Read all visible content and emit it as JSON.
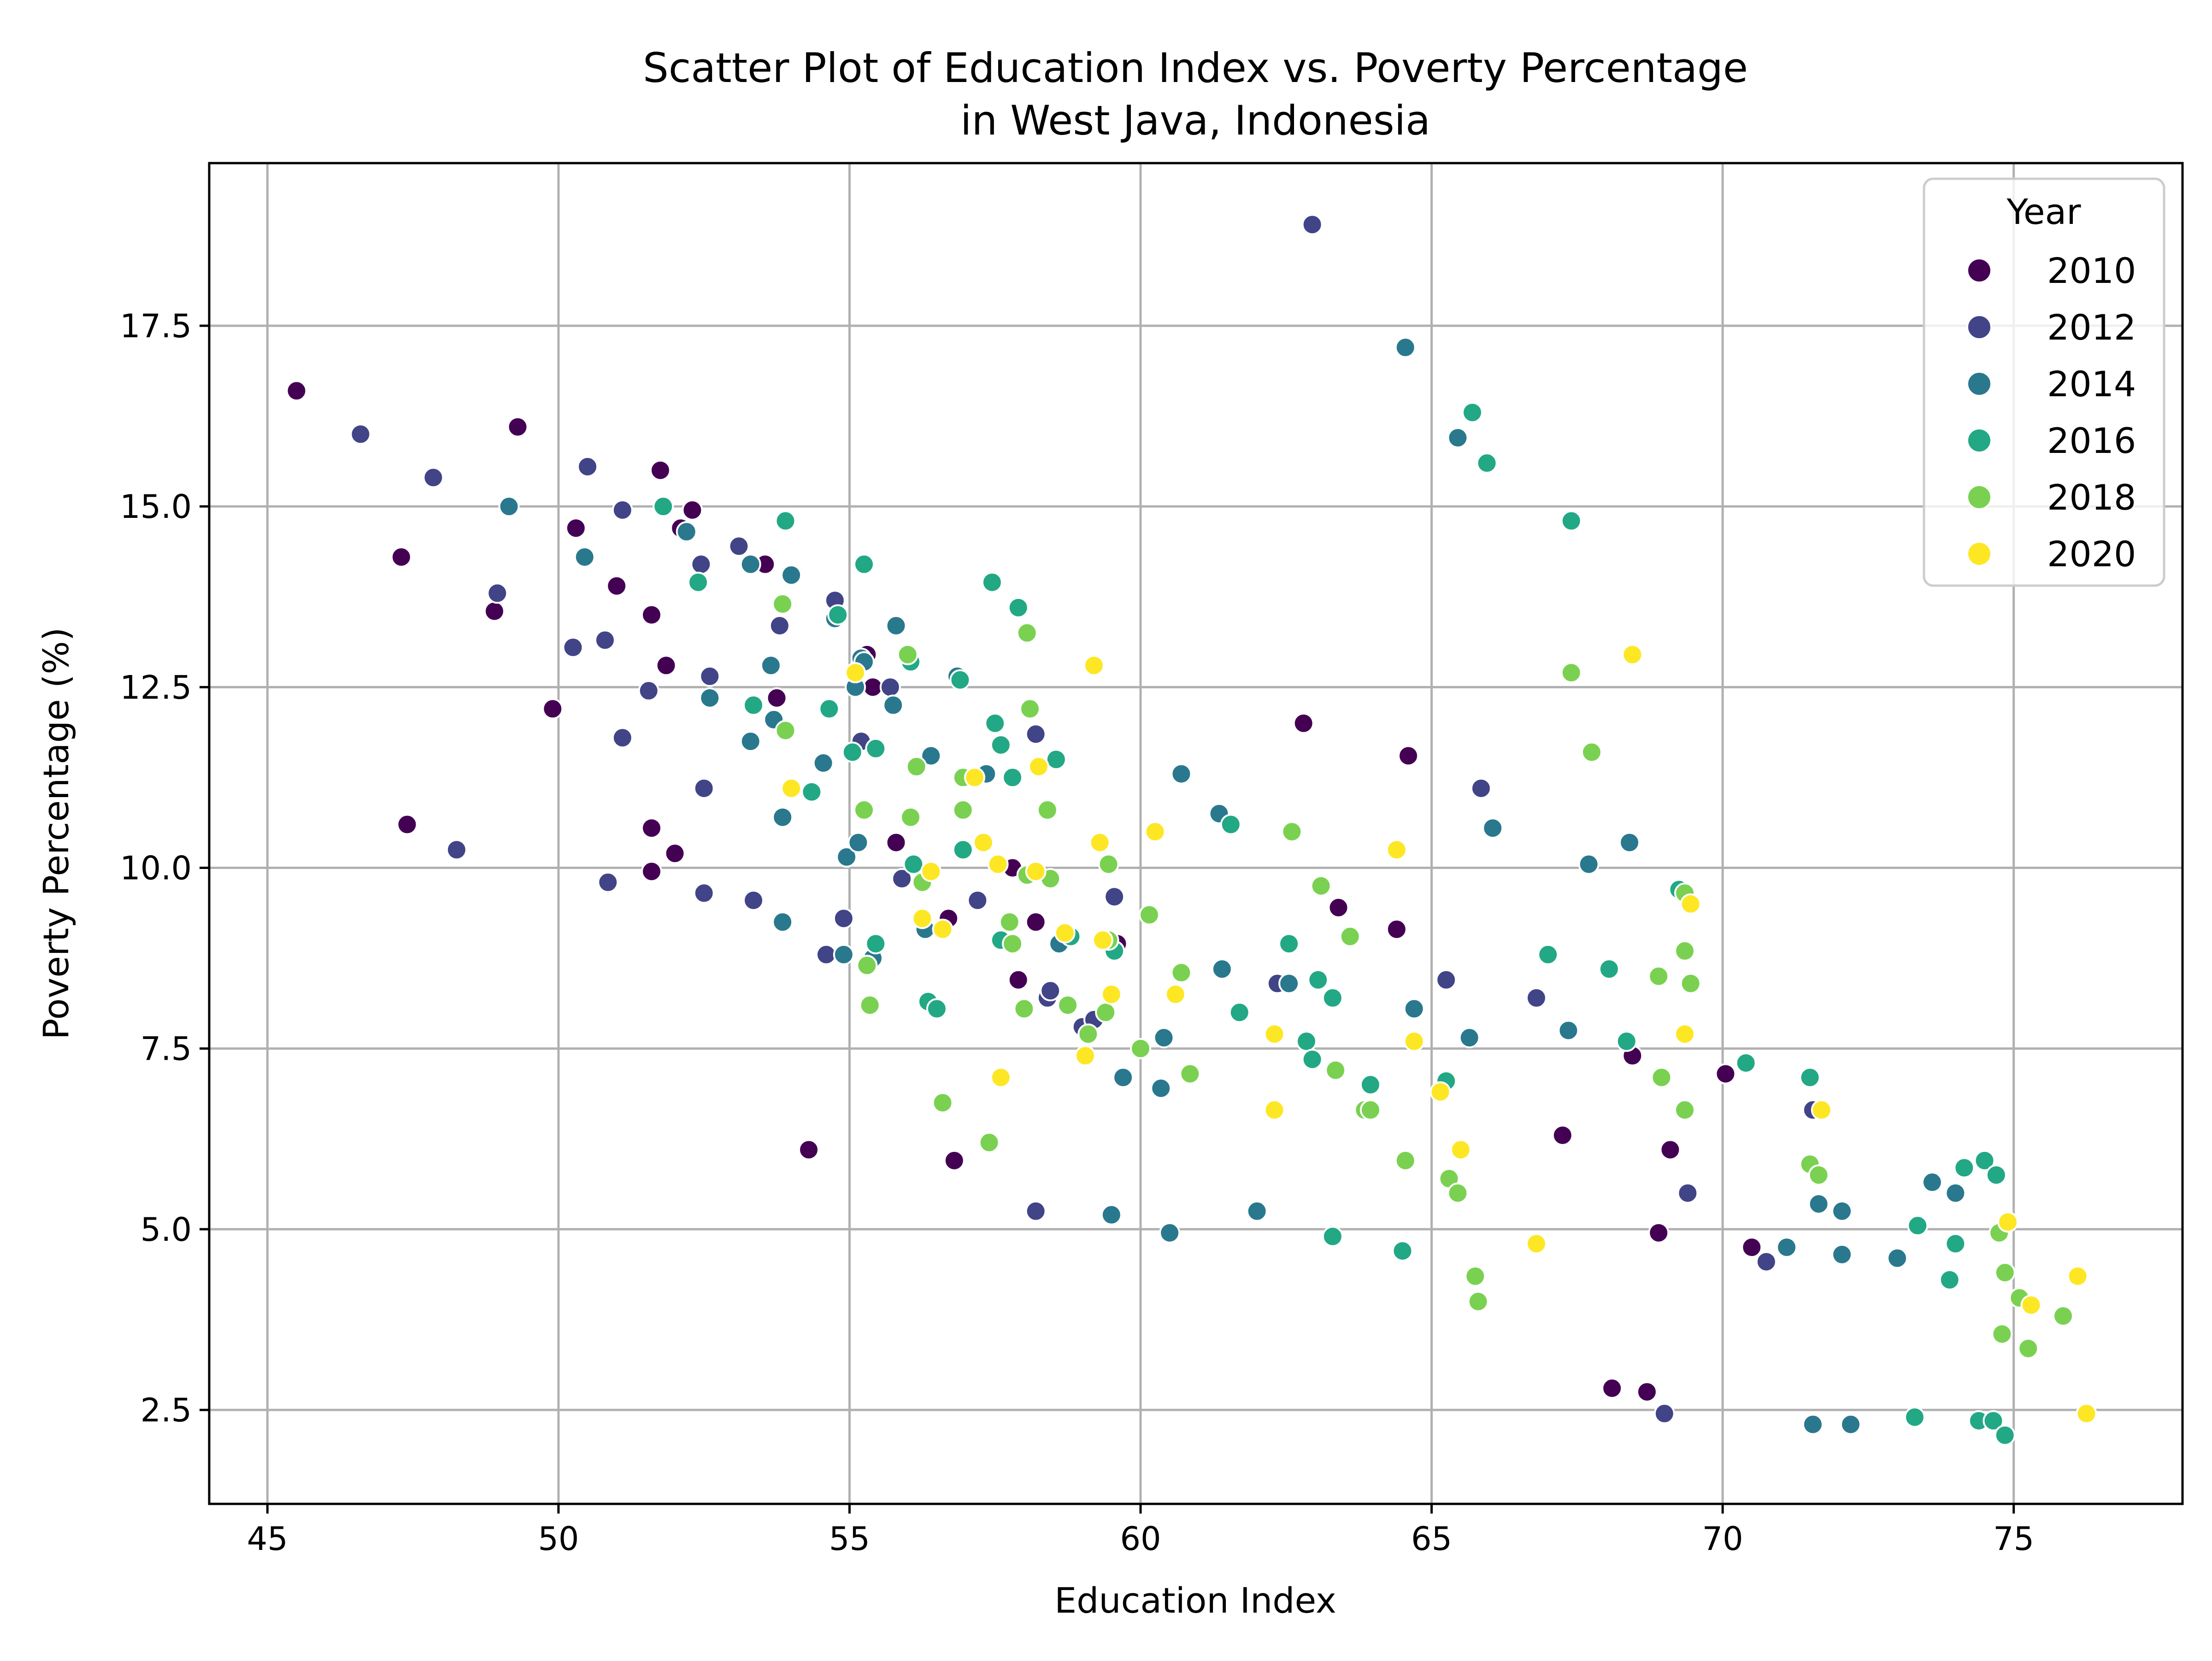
{
  "chart_data": {
    "type": "scatter",
    "title": "Scatter Plot of Education Index vs. Poverty Percentage\nin West Java, Indonesia",
    "title_lines": [
      "Scatter Plot of Education Index vs. Poverty Percentage",
      "in West Java, Indonesia"
    ],
    "xlabel": "Education Index",
    "ylabel": "Poverty Percentage (%)",
    "xlim": [
      44.0,
      77.9
    ],
    "ylim": [
      1.2,
      19.75
    ],
    "xticks": [
      45,
      50,
      55,
      60,
      65,
      70,
      75
    ],
    "yticks": [
      2.5,
      5.0,
      7.5,
      10.0,
      12.5,
      15.0,
      17.5
    ],
    "xtick_labels": [
      "45",
      "50",
      "55",
      "60",
      "65",
      "70",
      "75"
    ],
    "ytick_labels": [
      "2.5",
      "5.0",
      "7.5",
      "10.0",
      "12.5",
      "15.0",
      "17.5"
    ],
    "grid": true,
    "legend": {
      "title": "Year",
      "placement": "top-right"
    },
    "series": [
      {
        "name": "2010",
        "color": "#440154",
        "points": [
          [
            45.5,
            16.6
          ],
          [
            47.3,
            14.3
          ],
          [
            47.4,
            10.6
          ],
          [
            48.9,
            13.55
          ],
          [
            49.3,
            16.1
          ],
          [
            49.9,
            12.2
          ],
          [
            50.3,
            14.7
          ],
          [
            51.0,
            13.9
          ],
          [
            51.6,
            13.5
          ],
          [
            51.6,
            10.55
          ],
          [
            51.6,
            9.95
          ],
          [
            51.75,
            15.5
          ],
          [
            51.85,
            12.8
          ],
          [
            52.3,
            14.95
          ],
          [
            52.0,
            10.2
          ],
          [
            52.1,
            14.7
          ],
          [
            53.55,
            14.2
          ],
          [
            53.75,
            12.35
          ],
          [
            54.3,
            6.1
          ],
          [
            55.3,
            12.95
          ],
          [
            55.4,
            12.5
          ],
          [
            55.8,
            10.35
          ],
          [
            56.7,
            9.3
          ],
          [
            56.8,
            5.95
          ],
          [
            57.8,
            10.0
          ],
          [
            57.9,
            8.45
          ],
          [
            58.2,
            9.25
          ],
          [
            59.6,
            8.95
          ],
          [
            62.8,
            12.0
          ],
          [
            63.4,
            9.45
          ],
          [
            64.4,
            9.15
          ],
          [
            64.6,
            11.55
          ],
          [
            67.25,
            6.3
          ],
          [
            68.1,
            2.8
          ],
          [
            68.45,
            7.4
          ],
          [
            68.7,
            2.75
          ],
          [
            68.9,
            4.95
          ],
          [
            69.1,
            6.1
          ],
          [
            70.05,
            7.15
          ],
          [
            70.5,
            4.75
          ]
        ]
      },
      {
        "name": "2012",
        "color": "#414487",
        "points": [
          [
            46.6,
            16.0
          ],
          [
            47.85,
            15.4
          ],
          [
            48.25,
            10.25
          ],
          [
            48.95,
            13.8
          ],
          [
            50.25,
            13.05
          ],
          [
            50.5,
            15.55
          ],
          [
            50.8,
            13.15
          ],
          [
            50.85,
            9.8
          ],
          [
            51.1,
            11.8
          ],
          [
            51.1,
            14.95
          ],
          [
            51.55,
            12.45
          ],
          [
            52.45,
            14.2
          ],
          [
            52.5,
            11.1
          ],
          [
            52.5,
            9.65
          ],
          [
            52.6,
            12.65
          ],
          [
            53.1,
            14.45
          ],
          [
            53.35,
            9.55
          ],
          [
            53.8,
            13.35
          ],
          [
            54.6,
            8.8
          ],
          [
            54.75,
            13.7
          ],
          [
            54.9,
            9.3
          ],
          [
            55.2,
            11.75
          ],
          [
            55.7,
            12.5
          ],
          [
            55.9,
            9.85
          ],
          [
            57.2,
            9.55
          ],
          [
            58.2,
            11.85
          ],
          [
            58.2,
            5.25
          ],
          [
            58.4,
            8.2
          ],
          [
            58.45,
            8.3
          ],
          [
            59.0,
            7.8
          ],
          [
            59.2,
            7.9
          ],
          [
            59.55,
            9.6
          ],
          [
            62.35,
            8.4
          ],
          [
            62.95,
            18.9
          ],
          [
            65.25,
            8.45
          ],
          [
            65.85,
            11.1
          ],
          [
            66.8,
            8.2
          ],
          [
            69.0,
            2.45
          ],
          [
            69.4,
            5.5
          ],
          [
            70.75,
            4.55
          ],
          [
            71.55,
            6.65
          ]
        ]
      },
      {
        "name": "2014",
        "color": "#2a788e",
        "points": [
          [
            49.15,
            15.0
          ],
          [
            50.45,
            14.3
          ],
          [
            52.2,
            14.65
          ],
          [
            52.6,
            12.35
          ],
          [
            53.3,
            11.75
          ],
          [
            53.3,
            14.2
          ],
          [
            53.65,
            12.8
          ],
          [
            53.7,
            12.05
          ],
          [
            53.85,
            10.7
          ],
          [
            53.85,
            9.25
          ],
          [
            54.0,
            14.05
          ],
          [
            54.55,
            11.45
          ],
          [
            54.75,
            13.45
          ],
          [
            54.9,
            8.8
          ],
          [
            54.95,
            10.15
          ],
          [
            55.1,
            12.5
          ],
          [
            55.15,
            10.35
          ],
          [
            55.2,
            12.9
          ],
          [
            55.25,
            12.85
          ],
          [
            55.4,
            8.75
          ],
          [
            55.75,
            12.25
          ],
          [
            55.8,
            13.35
          ],
          [
            56.4,
            11.55
          ],
          [
            56.3,
            9.15
          ],
          [
            56.85,
            12.65
          ],
          [
            57.35,
            11.3
          ],
          [
            58.6,
            8.95
          ],
          [
            59.5,
            5.2
          ],
          [
            59.7,
            7.1
          ],
          [
            60.35,
            6.95
          ],
          [
            60.4,
            7.65
          ],
          [
            60.5,
            4.95
          ],
          [
            60.7,
            11.3
          ],
          [
            61.35,
            10.75
          ],
          [
            61.4,
            8.6
          ],
          [
            62.0,
            5.25
          ],
          [
            62.55,
            8.4
          ],
          [
            64.55,
            17.2
          ],
          [
            64.7,
            8.05
          ],
          [
            65.45,
            15.95
          ],
          [
            65.65,
            7.65
          ],
          [
            66.05,
            10.55
          ],
          [
            67.7,
            10.05
          ],
          [
            67.35,
            7.75
          ],
          [
            68.4,
            10.35
          ],
          [
            71.1,
            4.75
          ],
          [
            71.55,
            2.3
          ],
          [
            71.65,
            5.35
          ],
          [
            72.05,
            5.25
          ],
          [
            72.05,
            4.65
          ],
          [
            72.2,
            2.3
          ],
          [
            73.0,
            4.6
          ],
          [
            73.6,
            5.65
          ],
          [
            74.0,
            5.5
          ]
        ]
      },
      {
        "name": "2016",
        "color": "#22a884",
        "points": [
          [
            51.8,
            15.0
          ],
          [
            52.4,
            13.95
          ],
          [
            53.35,
            12.25
          ],
          [
            53.9,
            14.8
          ],
          [
            54.35,
            11.05
          ],
          [
            54.65,
            12.2
          ],
          [
            54.8,
            13.5
          ],
          [
            55.05,
            11.6
          ],
          [
            55.25,
            14.2
          ],
          [
            55.45,
            8.95
          ],
          [
            55.45,
            11.65
          ],
          [
            56.05,
            12.85
          ],
          [
            56.1,
            10.05
          ],
          [
            56.35,
            8.15
          ],
          [
            56.5,
            8.05
          ],
          [
            56.9,
            12.6
          ],
          [
            56.95,
            10.25
          ],
          [
            57.45,
            13.95
          ],
          [
            57.5,
            12.0
          ],
          [
            57.6,
            9.0
          ],
          [
            57.6,
            11.7
          ],
          [
            57.8,
            11.25
          ],
          [
            57.9,
            13.6
          ],
          [
            58.55,
            11.5
          ],
          [
            58.8,
            9.05
          ],
          [
            59.55,
            8.85
          ],
          [
            61.7,
            8.0
          ],
          [
            61.55,
            10.6
          ],
          [
            62.55,
            8.95
          ],
          [
            62.85,
            7.6
          ],
          [
            62.95,
            7.35
          ],
          [
            63.05,
            8.45
          ],
          [
            63.3,
            8.2
          ],
          [
            63.3,
            4.9
          ],
          [
            63.95,
            7.0
          ],
          [
            64.5,
            4.7
          ],
          [
            65.25,
            7.05
          ],
          [
            65.7,
            16.3
          ],
          [
            65.95,
            15.6
          ],
          [
            67.0,
            8.8
          ],
          [
            67.4,
            14.8
          ],
          [
            68.05,
            8.6
          ],
          [
            68.35,
            7.6
          ],
          [
            69.25,
            9.7
          ],
          [
            70.4,
            7.3
          ],
          [
            71.5,
            7.1
          ],
          [
            73.35,
            5.05
          ],
          [
            73.3,
            2.4
          ],
          [
            73.9,
            4.3
          ],
          [
            74.0,
            4.8
          ],
          [
            74.15,
            5.85
          ],
          [
            74.4,
            2.35
          ],
          [
            74.5,
            5.95
          ],
          [
            74.65,
            2.35
          ],
          [
            74.7,
            5.75
          ],
          [
            74.85,
            2.15
          ]
        ]
      },
      {
        "name": "2018",
        "color": "#7ad151",
        "points": [
          [
            53.85,
            13.65
          ],
          [
            53.9,
            11.9
          ],
          [
            55.25,
            10.8
          ],
          [
            55.3,
            8.65
          ],
          [
            55.35,
            8.1
          ],
          [
            56.05,
            10.7
          ],
          [
            56.0,
            12.95
          ],
          [
            56.15,
            11.4
          ],
          [
            56.25,
            9.8
          ],
          [
            56.6,
            6.75
          ],
          [
            56.95,
            10.8
          ],
          [
            56.95,
            11.25
          ],
          [
            57.4,
            6.2
          ],
          [
            57.75,
            9.25
          ],
          [
            57.8,
            8.95
          ],
          [
            58.0,
            8.05
          ],
          [
            58.05,
            9.9
          ],
          [
            58.1,
            12.2
          ],
          [
            58.05,
            13.25
          ],
          [
            58.4,
            10.8
          ],
          [
            58.45,
            9.85
          ],
          [
            58.75,
            8.1
          ],
          [
            59.1,
            7.7
          ],
          [
            59.45,
            9.0
          ],
          [
            59.4,
            8.0
          ],
          [
            59.45,
            10.05
          ],
          [
            60.0,
            7.5
          ],
          [
            60.15,
            9.35
          ],
          [
            60.85,
            7.15
          ],
          [
            60.7,
            8.55
          ],
          [
            62.6,
            10.5
          ],
          [
            63.1,
            9.75
          ],
          [
            63.35,
            7.2
          ],
          [
            63.6,
            9.05
          ],
          [
            63.85,
            6.65
          ],
          [
            63.95,
            6.65
          ],
          [
            64.55,
            5.95
          ],
          [
            65.3,
            5.7
          ],
          [
            65.45,
            5.5
          ],
          [
            65.75,
            4.35
          ],
          [
            65.8,
            4.0
          ],
          [
            67.4,
            12.7
          ],
          [
            67.75,
            11.6
          ],
          [
            68.95,
            7.1
          ],
          [
            68.9,
            8.5
          ],
          [
            69.35,
            8.85
          ],
          [
            69.35,
            6.65
          ],
          [
            69.45,
            8.4
          ],
          [
            69.35,
            9.65
          ],
          [
            71.5,
            5.9
          ],
          [
            71.65,
            5.75
          ],
          [
            74.75,
            4.95
          ],
          [
            74.85,
            4.4
          ],
          [
            74.8,
            3.55
          ],
          [
            75.1,
            4.05
          ],
          [
            75.25,
            3.35
          ],
          [
            75.85,
            3.8
          ]
        ]
      },
      {
        "name": "2020",
        "color": "#fde725",
        "points": [
          [
            54.0,
            11.1
          ],
          [
            55.1,
            12.7
          ],
          [
            56.25,
            9.3
          ],
          [
            56.4,
            9.95
          ],
          [
            56.6,
            9.15
          ],
          [
            57.15,
            11.25
          ],
          [
            57.3,
            10.35
          ],
          [
            57.55,
            10.05
          ],
          [
            57.6,
            7.1
          ],
          [
            58.2,
            9.95
          ],
          [
            58.25,
            11.4
          ],
          [
            58.7,
            9.1
          ],
          [
            59.05,
            7.4
          ],
          [
            59.2,
            12.8
          ],
          [
            59.3,
            10.35
          ],
          [
            59.35,
            9.0
          ],
          [
            59.5,
            8.25
          ],
          [
            60.25,
            10.5
          ],
          [
            60.6,
            8.25
          ],
          [
            62.3,
            7.7
          ],
          [
            62.3,
            6.65
          ],
          [
            64.4,
            10.25
          ],
          [
            64.7,
            7.6
          ],
          [
            65.15,
            6.9
          ],
          [
            65.5,
            6.1
          ],
          [
            66.8,
            4.8
          ],
          [
            68.45,
            12.95
          ],
          [
            69.35,
            7.7
          ],
          [
            69.45,
            9.5
          ],
          [
            71.7,
            6.65
          ],
          [
            74.9,
            5.1
          ],
          [
            75.3,
            3.95
          ],
          [
            76.1,
            4.35
          ],
          [
            76.25,
            2.45
          ]
        ]
      }
    ]
  }
}
